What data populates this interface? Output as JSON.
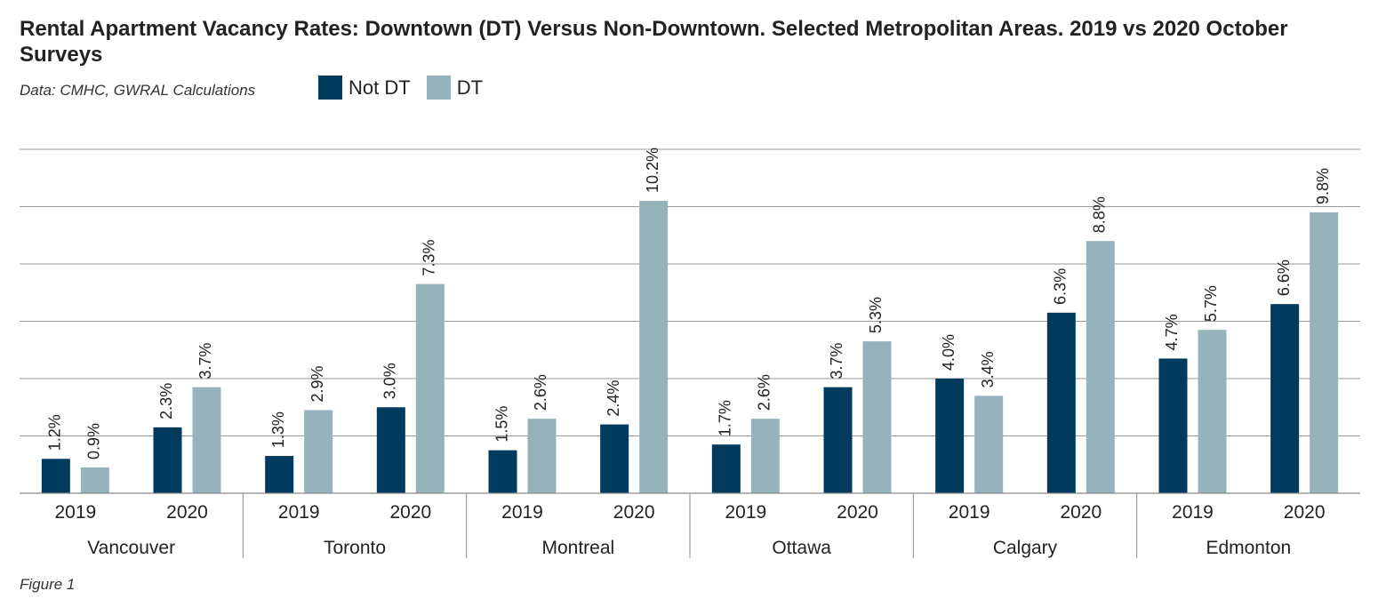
{
  "title": "Rental Apartment Vacancy Rates: Downtown (DT) Versus Non-Downtown. Selected Metropolitan Areas. 2019 vs 2020 October Surveys",
  "subtitle": "Data: CMHC, GWRAL Calculations",
  "caption": "Figure 1",
  "colors": {
    "not_dt": "#003a5c",
    "dt": "#95b3bb",
    "grid": "#9a9a9a",
    "axis": "#8a8a8a"
  },
  "chart_data": {
    "type": "bar",
    "title": "Rental Apartment Vacancy Rates: Downtown (DT) Versus Non-Downtown. Selected Metropolitan Areas. 2019 vs 2020 October Surveys",
    "xlabel": "",
    "ylabel": "",
    "ylim": [
      0,
      12
    ],
    "grid": true,
    "legend_position": "top-left",
    "groups": [
      "Vancouver",
      "Toronto",
      "Montreal",
      "Ottawa",
      "Calgary",
      "Edmonton"
    ],
    "years": [
      "2019",
      "2020"
    ],
    "categories": [
      "Vancouver 2019",
      "Vancouver 2020",
      "Toronto 2019",
      "Toronto 2020",
      "Montreal 2019",
      "Montreal 2020",
      "Ottawa 2019",
      "Ottawa 2020",
      "Calgary 2019",
      "Calgary 2020",
      "Edmonton 2019",
      "Edmonton 2020"
    ],
    "series": [
      {
        "name": "Not DT",
        "values": [
          1.2,
          2.3,
          1.3,
          3.0,
          1.5,
          2.4,
          1.7,
          3.7,
          4.0,
          6.3,
          4.7,
          6.6
        ],
        "labels": [
          "1.2%",
          "2.3%",
          "1.3%",
          "3.0%",
          "1.5%",
          "2.4%",
          "1.7%",
          "3.7%",
          "4.0%",
          "6.3%",
          "4.7%",
          "6.6%"
        ]
      },
      {
        "name": "DT",
        "values": [
          0.9,
          3.7,
          2.9,
          7.3,
          2.6,
          10.2,
          2.6,
          5.3,
          3.4,
          8.8,
          5.7,
          9.8
        ],
        "labels": [
          "0.9%",
          "3.7%",
          "2.9%",
          "7.3%",
          "2.6%",
          "10.2%",
          "2.6%",
          "5.3%",
          "3.4%",
          "8.8%",
          "5.7%",
          "9.8%"
        ]
      }
    ]
  }
}
